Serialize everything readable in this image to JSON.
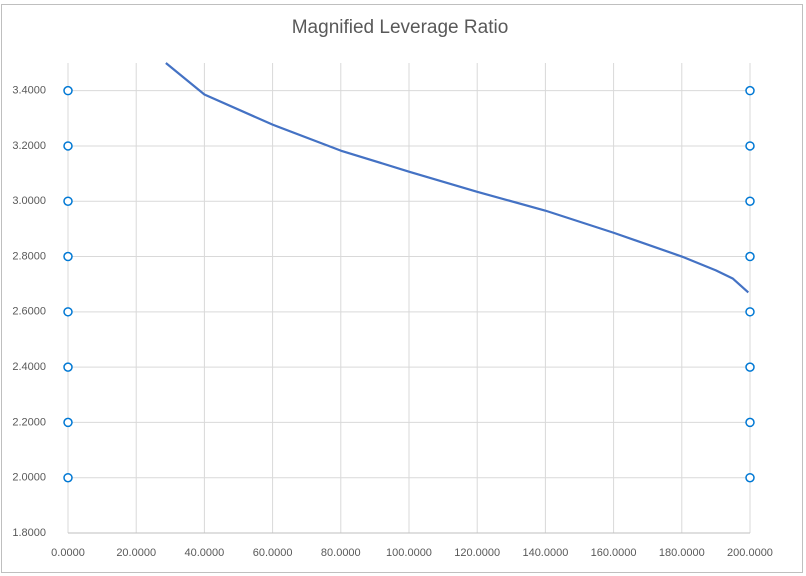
{
  "chart_data": {
    "type": "line",
    "title": "Magnified Leverage Ratio",
    "x": [
      28.7,
      40,
      60,
      80,
      100,
      120,
      140,
      160,
      180,
      190,
      195,
      199.5
    ],
    "series": [
      {
        "color": "#4472c4",
        "values": [
          3.5,
          3.386,
          3.277,
          3.183,
          3.107,
          3.034,
          2.966,
          2.886,
          2.8,
          2.75,
          2.72,
          2.67
        ]
      }
    ],
    "xlim": [
      0,
      200
    ],
    "xticks": [
      {
        "value": 0,
        "label": "0.0000"
      },
      {
        "value": 20,
        "label": "20.0000"
      },
      {
        "value": 40,
        "label": "40.0000"
      },
      {
        "value": 60,
        "label": "60.0000"
      },
      {
        "value": 80,
        "label": "80.0000"
      },
      {
        "value": 100,
        "label": "100.0000"
      },
      {
        "value": 120,
        "label": "120.0000"
      },
      {
        "value": 140,
        "label": "140.0000"
      },
      {
        "value": 160,
        "label": "160.0000"
      },
      {
        "value": 180,
        "label": "180.0000"
      },
      {
        "value": 200,
        "label": "200.0000"
      }
    ],
    "ylim": [
      1.8,
      3.5
    ],
    "yticks": [
      {
        "value": 1.8,
        "label": "1.8000"
      },
      {
        "value": 2.0,
        "label": "2.0000"
      },
      {
        "value": 2.2,
        "label": "2.2000"
      },
      {
        "value": 2.4,
        "label": "2.4000"
      },
      {
        "value": 2.6,
        "label": "2.6000"
      },
      {
        "value": 2.8,
        "label": "2.8000"
      },
      {
        "value": 3.0,
        "label": "3.0000"
      },
      {
        "value": 3.2,
        "label": "3.2000"
      },
      {
        "value": 3.4,
        "label": "3.4000"
      }
    ],
    "grid": true
  }
}
